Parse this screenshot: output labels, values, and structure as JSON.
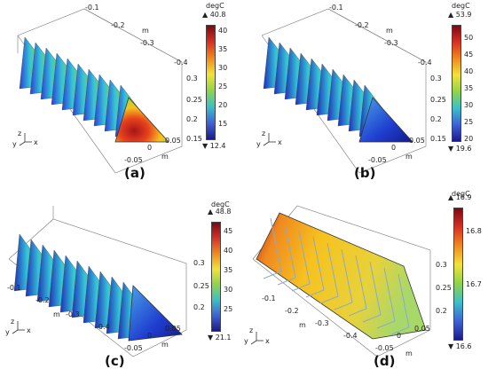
{
  "panels": [
    {
      "id": "a",
      "label": "(a)",
      "unit": "degC",
      "max": "40.8",
      "min": "12.4",
      "cbar_ticks": [
        "40",
        "35",
        "30",
        "25",
        "20",
        "15"
      ],
      "axis_x_ticks": [
        "-0.1",
        "-0.2",
        "-0.3",
        "-0.4"
      ],
      "axis_x_label": "m",
      "axis_z_ticks": [
        "0.3",
        "0.25",
        "0.2",
        "0.15"
      ],
      "axis_y_ticks": [
        "-0.05",
        "0",
        "0.05"
      ],
      "axis_y_label": "m",
      "triad": [
        "z",
        "y",
        "x"
      ]
    },
    {
      "id": "b",
      "label": "(b)",
      "unit": "degC",
      "max": "53.9",
      "min": "19.6",
      "cbar_ticks": [
        "50",
        "45",
        "40",
        "35",
        "30",
        "25",
        "20"
      ],
      "axis_x_ticks": [
        "-0.1",
        "-0.2",
        "-0.3",
        "-0.4"
      ],
      "axis_x_label": "m",
      "axis_z_ticks": [
        "0.3",
        "0.25",
        "0.2",
        "0.15"
      ],
      "axis_y_ticks": [
        "-0.05",
        "0",
        "0.05"
      ],
      "axis_y_label": "m",
      "triad": [
        "z",
        "y",
        "x"
      ]
    },
    {
      "id": "c",
      "label": "(c)",
      "unit": "degC",
      "max": "48.8",
      "min": "21.1",
      "cbar_ticks": [
        "45",
        "40",
        "35",
        "30",
        "25"
      ],
      "axis_x_ticks": [
        "-0.1",
        "-0.2",
        "-0.3",
        "-0.4"
      ],
      "axis_x_label": "m",
      "axis_z_ticks": [
        "0.3",
        "0.25",
        "0.2"
      ],
      "axis_y_ticks": [
        "-0.05",
        "0",
        "0.05"
      ],
      "axis_y_label": "m",
      "triad": [
        "z",
        "y",
        "x"
      ]
    },
    {
      "id": "d",
      "label": "(d)",
      "unit": "degC",
      "max": "16.9",
      "min": "16.6",
      "cbar_ticks": [
        "16.8",
        "16.7"
      ],
      "axis_x_ticks": [
        "-0.1",
        "-0.2",
        "-0.3",
        "-0.4"
      ],
      "axis_x_label": "m",
      "axis_z_ticks": [
        "0.3",
        "0.25",
        "0.2"
      ],
      "axis_y_ticks": [
        "-0.05",
        "0",
        "0.05"
      ],
      "axis_y_label": "m",
      "triad": [
        "z",
        "y",
        "x"
      ]
    }
  ]
}
